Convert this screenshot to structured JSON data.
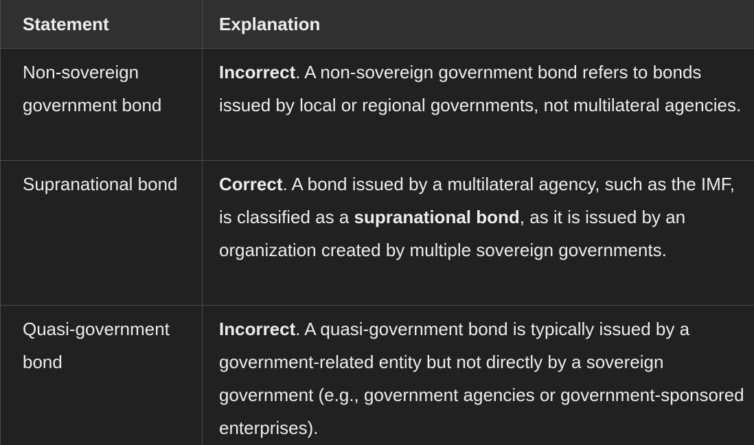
{
  "table": {
    "headers": {
      "statement": "Statement",
      "explanation": "Explanation"
    },
    "rows": [
      {
        "statement": "Non-sovereign government bond",
        "verdict": "Incorrect",
        "text_before": ". A non-sovereign government bond refers to bonds issued by local or regional governments, not multilateral agencies.",
        "bold_term": "",
        "text_after": ""
      },
      {
        "statement": "Supranational bond",
        "verdict": "Correct",
        "text_before": ". A bond issued by a multilateral agency, such as the IMF, is classified as a ",
        "bold_term": "supranational bond",
        "text_after": ", as it is issued by an organization created by multiple sovereign governments."
      },
      {
        "statement": "Quasi-government bond",
        "verdict": "Incorrect",
        "text_before": ". A quasi-government bond is typically issued by a government-related entity but not directly by a sovereign government (e.g., government agencies or government-sponsored enterprises).",
        "bold_term": "",
        "text_after": ""
      }
    ]
  }
}
